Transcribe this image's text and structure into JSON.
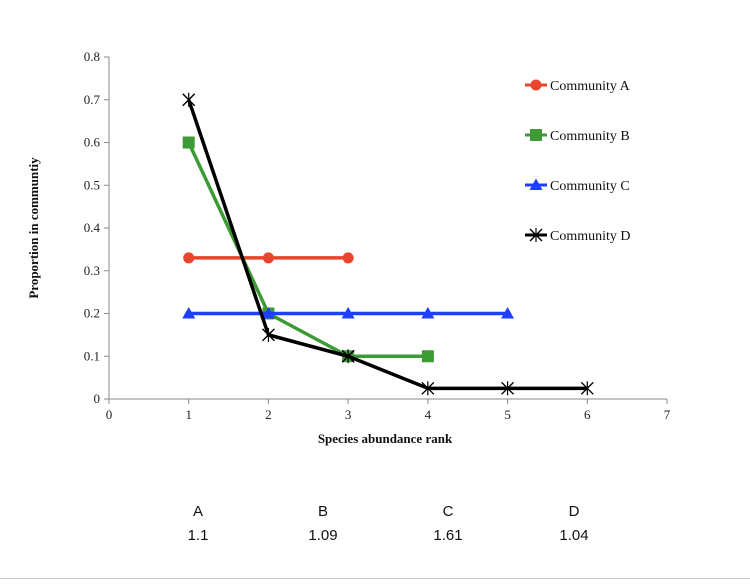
{
  "chart_data": {
    "type": "line",
    "title": "",
    "xlabel": "Species abundance rank",
    "ylabel": "Proportion in communtiy",
    "xlim": [
      0,
      7
    ],
    "ylim": [
      0,
      0.8
    ],
    "x_ticks": [
      "0",
      "1",
      "2",
      "3",
      "4",
      "5",
      "6",
      "7"
    ],
    "y_ticks": [
      "0",
      "0.1",
      "0.2",
      "0.3",
      "0.4",
      "0.5",
      "0.6",
      "0.7",
      "0.8"
    ],
    "grid": false,
    "legend_position": "right",
    "series": [
      {
        "name": "Community A",
        "color": "#e8452c",
        "marker": "circle",
        "x": [
          1,
          2,
          3
        ],
        "y": [
          0.33,
          0.33,
          0.33
        ]
      },
      {
        "name": "Community B",
        "color": "#3d9b35",
        "marker": "square",
        "x": [
          1,
          2,
          3,
          4
        ],
        "y": [
          0.6,
          0.2,
          0.1,
          0.1
        ]
      },
      {
        "name": "Community C",
        "color": "#1f3fff",
        "marker": "triangle",
        "x": [
          1,
          2,
          3,
          4,
          5
        ],
        "y": [
          0.2,
          0.2,
          0.2,
          0.2,
          0.2
        ]
      },
      {
        "name": "Community D",
        "color": "#000000",
        "marker": "star",
        "x": [
          1,
          2,
          3,
          4,
          5,
          6
        ],
        "y": [
          0.7,
          0.15,
          0.1,
          0.025,
          0.025,
          0.025
        ]
      }
    ]
  },
  "diversity_table": {
    "columns": [
      {
        "label": "A",
        "value": "1.1"
      },
      {
        "label": "B",
        "value": "1.09"
      },
      {
        "label": "C",
        "value": "1.61"
      },
      {
        "label": "D",
        "value": "1.04"
      }
    ]
  }
}
